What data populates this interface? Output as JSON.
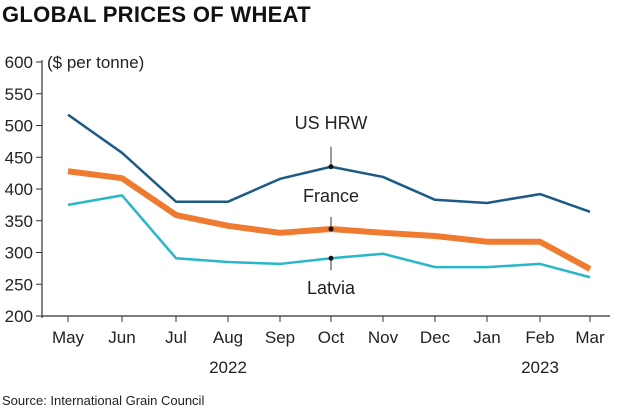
{
  "chart_data": {
    "type": "line",
    "title": "GLOBAL PRICES OF WHEAT",
    "ylabel": "($ per tonne)",
    "categories": [
      "May",
      "Jun",
      "Jul",
      "Aug",
      "Sep",
      "Oct",
      "Nov",
      "Dec",
      "Jan",
      "Feb",
      "Mar"
    ],
    "year_labels": [
      {
        "label": "2022",
        "at": "Aug-Sep"
      },
      {
        "label": "2023",
        "at": "Feb"
      }
    ],
    "ylim": [
      200,
      600
    ],
    "yticks": [
      200,
      250,
      300,
      350,
      400,
      450,
      500,
      550,
      600
    ],
    "series": [
      {
        "name": "US HRW",
        "color": "#1d5b86",
        "values": [
          517,
          457,
          380,
          380,
          416,
          435,
          419,
          383,
          378,
          392,
          364
        ]
      },
      {
        "name": "France",
        "color": "#ee7b30",
        "values": [
          428,
          417,
          359,
          342,
          331,
          337,
          331,
          326,
          317,
          317,
          274
        ]
      },
      {
        "name": "Latvia",
        "color": "#29b6c8",
        "values": [
          375,
          390,
          291,
          285,
          282,
          291,
          298,
          277,
          277,
          282,
          261
        ]
      }
    ],
    "source": "Source: International Grain Council"
  }
}
